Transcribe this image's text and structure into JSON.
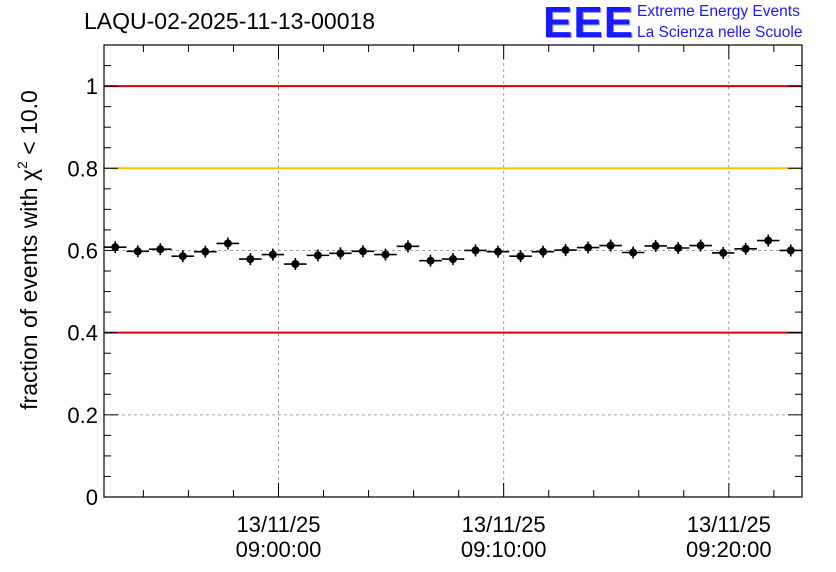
{
  "header": {
    "title": "LAQU-02-2025-11-13-00018",
    "logo_mark": "EEE",
    "logo_line1": "Extreme Energy Events",
    "logo_line2": "La Scienza nelle Scuole"
  },
  "colors": {
    "red_line": "#e00000",
    "orange_line": "#ffc000",
    "points": "#000000",
    "grid": "#a0a0a0",
    "logo": "#1a1aff"
  },
  "chart_data": {
    "type": "scatter",
    "title": "LAQU-02-2025-11-13-00018",
    "ylabel_main": "fraction of events with ",
    "ylabel_chi": "χ",
    "ylabel_sup": "2",
    "ylabel_tail": " < 10.0",
    "ylim": [
      0,
      1.1
    ],
    "yticks": [
      {
        "value": 0,
        "label": "0"
      },
      {
        "value": 0.2,
        "label": "0.2"
      },
      {
        "value": 0.4,
        "label": "0.4"
      },
      {
        "value": 0.6,
        "label": "0.6"
      },
      {
        "value": 0.8,
        "label": "0.8"
      },
      {
        "value": 1,
        "label": "1"
      }
    ],
    "xlim_minutes": [
      -7.75,
      23.25
    ],
    "xticks": [
      {
        "minutes": 0,
        "date": "13/11/25",
        "time": "09:00:00"
      },
      {
        "minutes": 10,
        "date": "13/11/25",
        "time": "09:10:00"
      },
      {
        "minutes": 20,
        "date": "13/11/25",
        "time": "09:20:00"
      }
    ],
    "reference_lines": [
      {
        "y": 1.0,
        "color": "red"
      },
      {
        "y": 0.8,
        "color": "orange"
      },
      {
        "y": 0.4,
        "color": "red"
      }
    ],
    "bin_width_minutes": 1,
    "x_minutes": [
      -7.25,
      -6.25,
      -5.25,
      -4.25,
      -3.25,
      -2.25,
      -1.25,
      -0.25,
      0.75,
      1.75,
      2.75,
      3.75,
      4.75,
      5.75,
      6.75,
      7.75,
      8.75,
      9.75,
      10.75,
      11.75,
      12.75,
      13.75,
      14.75,
      15.75,
      16.75,
      17.75,
      18.75,
      19.75,
      20.75,
      21.75,
      22.75
    ],
    "y": [
      0.608,
      0.598,
      0.603,
      0.586,
      0.597,
      0.617,
      0.579,
      0.59,
      0.567,
      0.588,
      0.593,
      0.598,
      0.59,
      0.61,
      0.575,
      0.579,
      0.6,
      0.597,
      0.586,
      0.597,
      0.601,
      0.607,
      0.612,
      0.595,
      0.611,
      0.606,
      0.612,
      0.594,
      0.604,
      0.624,
      0.6
    ]
  }
}
